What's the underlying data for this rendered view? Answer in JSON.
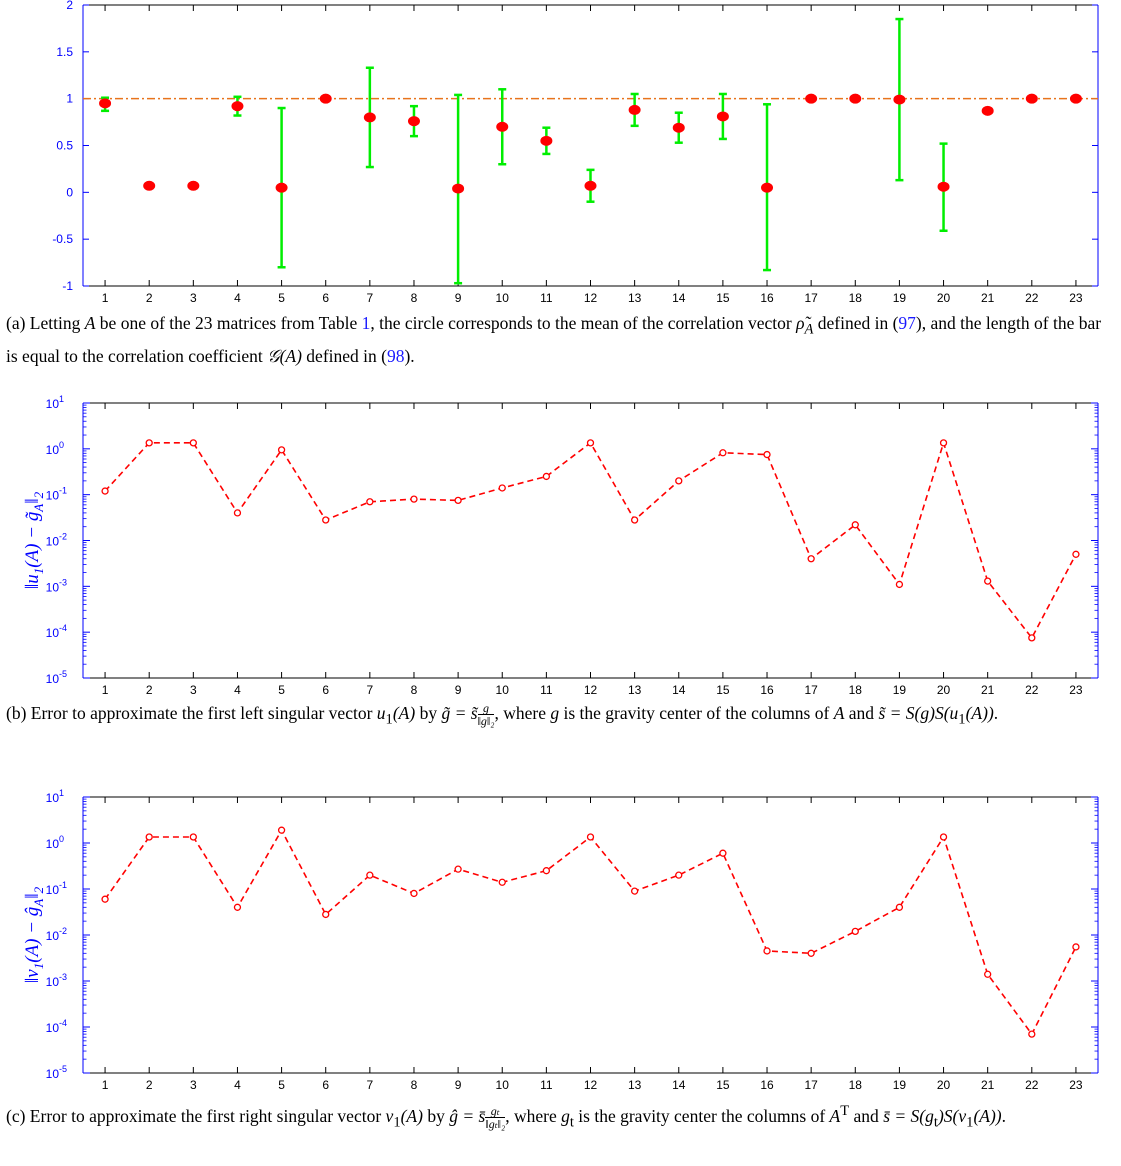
{
  "chart_data": [
    {
      "type": "errorbar",
      "x": [
        1,
        2,
        3,
        4,
        5,
        6,
        7,
        8,
        9,
        10,
        11,
        12,
        13,
        14,
        15,
        16,
        17,
        18,
        19,
        20,
        21,
        22,
        23
      ],
      "xticks": [
        "1",
        "2",
        "3",
        "4",
        "5",
        "6",
        "7",
        "8",
        "9",
        "10",
        "11",
        "12",
        "13",
        "14",
        "15",
        "16",
        "17",
        "18",
        "19",
        "20",
        "21",
        "22",
        "23"
      ],
      "ylim": [
        -1,
        2
      ],
      "yticks": [
        -1,
        -0.5,
        0,
        0.5,
        1,
        1.5,
        2
      ],
      "ytick_labels": [
        "-1",
        "-0.5",
        "0",
        "0.5",
        "1",
        "1.5",
        "2"
      ],
      "mean": [
        0.95,
        0.07,
        0.07,
        0.92,
        0.05,
        1.0,
        0.8,
        0.76,
        0.04,
        0.7,
        0.55,
        0.07,
        0.88,
        0.69,
        0.81,
        0.05,
        1.0,
        1.0,
        0.99,
        0.06,
        0.87,
        1.0,
        1.0
      ],
      "bar_low": [
        0.87,
        0.06,
        0.06,
        0.82,
        -0.8,
        1.0,
        0.27,
        0.6,
        -0.97,
        0.3,
        0.41,
        -0.1,
        0.71,
        0.53,
        0.57,
        -0.83,
        1.0,
        1.0,
        0.13,
        -0.41,
        0.85,
        1.0,
        1.0
      ],
      "bar_high": [
        1.01,
        0.07,
        0.07,
        1.02,
        0.9,
        1.0,
        1.33,
        0.92,
        1.04,
        1.1,
        0.69,
        0.24,
        1.05,
        0.85,
        1.05,
        0.94,
        1.0,
        1.0,
        1.85,
        0.52,
        0.89,
        1.0,
        1.0
      ],
      "reference_line": 1,
      "colors": {
        "marker": "#ff0000",
        "bar": "#00ee00",
        "reference": "#e8741c",
        "axis": "#0000ff"
      }
    },
    {
      "type": "line",
      "x": [
        1,
        2,
        3,
        4,
        5,
        6,
        7,
        8,
        9,
        10,
        11,
        12,
        13,
        14,
        15,
        16,
        17,
        18,
        19,
        20,
        21,
        22,
        23
      ],
      "xticks": [
        "1",
        "2",
        "3",
        "4",
        "5",
        "6",
        "7",
        "8",
        "9",
        "10",
        "11",
        "12",
        "13",
        "14",
        "15",
        "16",
        "17",
        "18",
        "19",
        "20",
        "21",
        "22",
        "23"
      ],
      "yscale": "log",
      "ylim": [
        1e-05,
        10
      ],
      "ylabel": "‖u₁(A) − g̃_A‖₂",
      "ylabel_base": "‖u",
      "ylabel_sub1": "1",
      "ylabel_mid": "(A) − g̃",
      "ylabel_sub2": "A",
      "ylabel_end": "‖",
      "ylabel_sub3": "2",
      "ytick_mantissa": [
        "10",
        "10",
        "10",
        "10",
        "10",
        "10",
        "10"
      ],
      "ytick_exp": [
        "-5",
        "-4",
        "-3",
        "-2",
        "-1",
        "0",
        "1"
      ],
      "values": [
        0.12,
        1.35,
        1.35,
        0.04,
        0.95,
        0.028,
        0.07,
        0.08,
        0.075,
        0.14,
        0.25,
        1.35,
        0.028,
        0.2,
        0.82,
        0.75,
        0.004,
        0.022,
        0.0011,
        1.35,
        0.0013,
        7.5e-05,
        0.005
      ],
      "colors": {
        "line": "#ff0000",
        "axis": "#0000ff"
      }
    },
    {
      "type": "line",
      "x": [
        1,
        2,
        3,
        4,
        5,
        6,
        7,
        8,
        9,
        10,
        11,
        12,
        13,
        14,
        15,
        16,
        17,
        18,
        19,
        20,
        21,
        22,
        23
      ],
      "xticks": [
        "1",
        "2",
        "3",
        "4",
        "5",
        "6",
        "7",
        "8",
        "9",
        "10",
        "11",
        "12",
        "13",
        "14",
        "15",
        "16",
        "17",
        "18",
        "19",
        "20",
        "21",
        "22",
        "23"
      ],
      "yscale": "log",
      "ylim": [
        1e-05,
        10
      ],
      "ylabel": "‖v₁(A) − ĝ_A‖₂",
      "ylabel_base": "‖v",
      "ylabel_sub1": "1",
      "ylabel_mid": "(A) − ĝ",
      "ylabel_sub2": "A",
      "ylabel_end": "‖",
      "ylabel_sub3": "2",
      "ytick_mantissa": [
        "10",
        "10",
        "10",
        "10",
        "10",
        "10",
        "10"
      ],
      "ytick_exp": [
        "-5",
        "-4",
        "-3",
        "-2",
        "-1",
        "0",
        "1"
      ],
      "values": [
        0.06,
        1.35,
        1.35,
        0.04,
        1.9,
        0.028,
        0.2,
        0.08,
        0.27,
        0.14,
        0.25,
        1.35,
        0.09,
        0.2,
        0.6,
        0.0045,
        0.004,
        0.012,
        0.04,
        1.35,
        0.0014,
        7e-05,
        0.0055
      ],
      "colors": {
        "line": "#ff0000",
        "axis": "#0000ff"
      }
    }
  ],
  "captions": {
    "a": {
      "p1": "(a) Letting ",
      "p2": "A",
      "p3": " be one of the 23 matrices from Table ",
      "p4": "1",
      "p5": ", the circle corresponds to the mean of the correlation vector ",
      "p6": "ρ̃",
      "p7": "A",
      "p8": " defined in (",
      "p9": "97",
      "p10": "), and the length of the bar is equal to the correlation coefficient ",
      "p11": "𝒢(A)",
      "p12": " defined in (",
      "p13": "98",
      "p14": ")."
    },
    "b": {
      "p1": "(b) Error to approximate the first left singular vector ",
      "p2": "u",
      "p3": "1",
      "p4": "(A)",
      "p5": " by ",
      "p6": "g̃ = s̃",
      "p7": "g",
      "p8": "‖g‖₂",
      "p9": ", where ",
      "p10": "g",
      "p11": " is the gravity center of the columns of ",
      "p12": "A",
      "p13": " and ",
      "p14": "s̃ = S(g)S(u",
      "p15": "1",
      "p16": "(A))",
      "p17": "."
    },
    "c": {
      "p1": "(c) Error to approximate the first right singular vector ",
      "p2": "v",
      "p3": "1",
      "p4": "(A)",
      "p5": " by ",
      "p6": "ĝ = s̄",
      "p7": "gₜ",
      "p8": "‖gₜ‖₂",
      "p9": ", where ",
      "p10": "g",
      "p11": "t",
      "p12": " is the gravity center the columns of ",
      "p13": "A",
      "p14": "T",
      "p15": " and ",
      "p16": "s̄ = S(g",
      "p17": "t",
      "p18": ")S(v",
      "p19": "1",
      "p20": "(A))",
      "p21": "."
    }
  }
}
